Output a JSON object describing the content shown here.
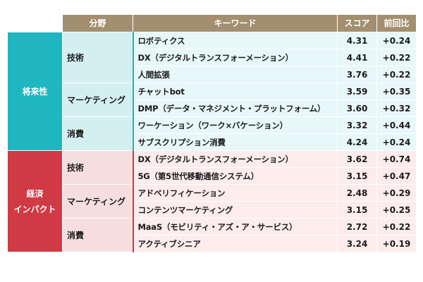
{
  "headers": {
    "field": "分野",
    "keyword": "キーワード",
    "score": "スコア",
    "change": "前回比"
  },
  "colors": {
    "header": "#a38f6f",
    "category_a": "#1fb6bf",
    "category_b": "#cf3a45"
  },
  "categories": [
    {
      "label_lines": [
        "将来性"
      ],
      "groups": [
        {
          "label": "技術",
          "rows": [
            {
              "keyword": "ロボティクス",
              "score": "4.31",
              "change": "+0.24"
            },
            {
              "keyword": "DX（デジタルトランスフォーメーション）",
              "score": "4.41",
              "change": "+0.22"
            },
            {
              "keyword": "人間拡張",
              "score": "3.76",
              "change": "+0.22"
            }
          ]
        },
        {
          "label": "マーケティング",
          "rows": [
            {
              "keyword": "チャットbot",
              "score": "3.59",
              "change": "+0.35"
            },
            {
              "keyword": "DMP（データ・マネジメント・プラットフォーム）",
              "score": "3.60",
              "change": "+0.32"
            }
          ]
        },
        {
          "label": "消費",
          "rows": [
            {
              "keyword": "ワーケーション（ワーク×バケーション）",
              "score": "3.32",
              "change": "+0.44"
            },
            {
              "keyword": "サブスクリプション消費",
              "score": "4.24",
              "change": "+0.24"
            }
          ]
        }
      ]
    },
    {
      "label_lines": [
        "経済",
        "インパクト"
      ],
      "groups": [
        {
          "label": "技術",
          "rows": [
            {
              "keyword": "DX（デジタルトランスフォーメーション）",
              "score": "3.62",
              "change": "+0.74"
            },
            {
              "keyword": "5G（第5世代移動通信システム）",
              "score": "3.15",
              "change": "+0.47"
            }
          ]
        },
        {
          "label": "マーケティング",
          "rows": [
            {
              "keyword": "アドベリフィケーション",
              "score": "2.48",
              "change": "+0.29"
            },
            {
              "keyword": "コンテンツマーケティング",
              "score": "3.15",
              "change": "+0.25"
            }
          ]
        },
        {
          "label": "消費",
          "rows": [
            {
              "keyword": "MaaS（モビリティ・アズ・ア・サービス）",
              "score": "2.72",
              "change": "+0.22"
            },
            {
              "keyword": "アクティブシニア",
              "score": "3.24",
              "change": "+0.19"
            }
          ]
        }
      ]
    }
  ]
}
